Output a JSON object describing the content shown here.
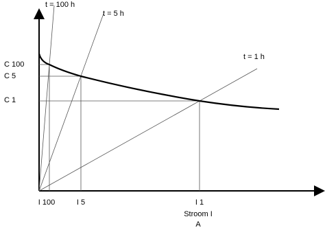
{
  "lines": [
    {
      "label": "t = 100 h"
    },
    {
      "label": "t = 5 h"
    },
    {
      "label": "t = 1 h"
    }
  ],
  "y_labels": [
    "C 100",
    "C 5",
    "C 1"
  ],
  "x_labels": [
    "I 100",
    "I 5",
    "I 1"
  ],
  "x_axis": {
    "title": "Stroom I",
    "unit": "A"
  }
}
